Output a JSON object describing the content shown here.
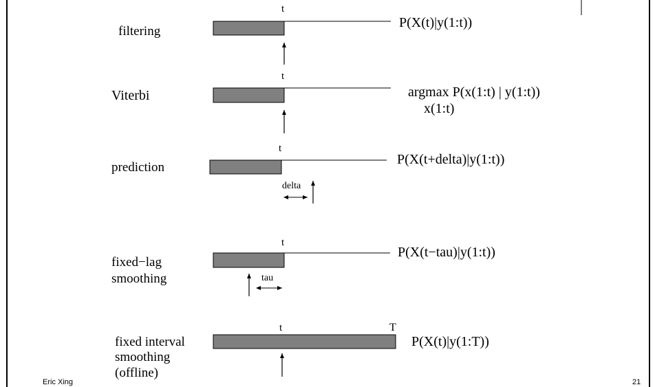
{
  "slide": {
    "author": "Eric Xing",
    "page_number": "21"
  },
  "rows": [
    {
      "label_lines": [
        "filtering"
      ],
      "t_label": "t",
      "formula_lines": [
        "P(X(t)|y(1:t))"
      ]
    },
    {
      "label_lines": [
        "Viterbi"
      ],
      "t_label": "t",
      "formula_lines": [
        "argmax P(x(1:t) | y(1:t))",
        "x(1:t)"
      ]
    },
    {
      "label_lines": [
        "prediction"
      ],
      "t_label": "t",
      "offset_label": "delta",
      "formula_lines": [
        "P(X(t+delta)|y(1:t))"
      ]
    },
    {
      "label_lines": [
        "fixed−lag",
        "smoothing"
      ],
      "t_label": "t",
      "offset_label": "tau",
      "formula_lines": [
        "P(X(t−tau)|y(1:t))"
      ]
    },
    {
      "label_lines": [
        "fixed interval",
        "smoothing",
        "(offline)"
      ],
      "t_label": "t",
      "end_label": "T",
      "formula_lines": [
        "P(X(t)|y(1:T))"
      ]
    }
  ]
}
